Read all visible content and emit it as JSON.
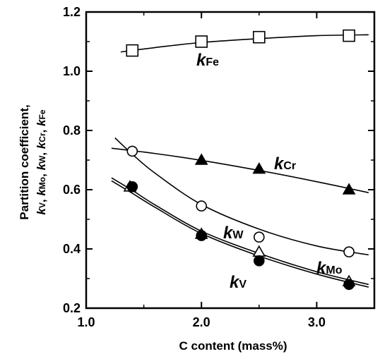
{
  "chart_data": {
    "type": "scatter",
    "xlabel": "C content  (mass%)",
    "ylabel": {
      "line1": "Partition coefficient,",
      "line2": [
        {
          "k": "k",
          "sub": "V"
        },
        {
          "k": "k",
          "sub": "Mo"
        },
        {
          "k": "k",
          "sub": "W"
        },
        {
          "k": "k",
          "sub": "Cr"
        },
        {
          "k": "k",
          "sub": "Fe"
        }
      ]
    },
    "xlim": [
      1.0,
      3.5
    ],
    "ylim": [
      0.2,
      1.2
    ],
    "x_ticks": [
      "1.0",
      "2.0",
      "3.0"
    ],
    "y_ticks": [
      "0.2",
      "0.4",
      "0.6",
      "0.8",
      "1.0",
      "1.2"
    ],
    "grid": false,
    "series": [
      {
        "name": "Fe",
        "label_k": "k",
        "label_sub": "Fe",
        "marker": "open-square",
        "points": [
          [
            1.4,
            1.07
          ],
          [
            2.0,
            1.1
          ],
          [
            2.5,
            1.115
          ],
          [
            3.28,
            1.12
          ]
        ],
        "fit": [
          [
            1.3,
            1.065
          ],
          [
            1.6,
            1.08
          ],
          [
            2.0,
            1.097
          ],
          [
            2.5,
            1.11
          ],
          [
            3.0,
            1.12
          ],
          [
            3.45,
            1.123
          ]
        ]
      },
      {
        "name": "Cr",
        "label_k": "k",
        "label_sub": "Cr",
        "marker": "filled-triangle",
        "points": [
          [
            2.0,
            0.7
          ],
          [
            2.5,
            0.67
          ],
          [
            3.28,
            0.6
          ]
        ],
        "fit": [
          [
            1.22,
            0.74
          ],
          [
            1.6,
            0.722
          ],
          [
            2.0,
            0.699
          ],
          [
            2.5,
            0.665
          ],
          [
            3.0,
            0.627
          ],
          [
            3.45,
            0.59
          ]
        ]
      },
      {
        "name": "W",
        "label_k": "k",
        "label_sub": "W",
        "marker": "open-circle",
        "points": [
          [
            1.4,
            0.73
          ],
          [
            2.0,
            0.545
          ],
          [
            2.5,
            0.44
          ],
          [
            3.28,
            0.39
          ]
        ],
        "fit": [
          [
            1.25,
            0.775
          ],
          [
            1.4,
            0.72
          ],
          [
            1.6,
            0.655
          ],
          [
            2.0,
            0.55
          ],
          [
            2.5,
            0.467
          ],
          [
            3.0,
            0.41
          ],
          [
            3.45,
            0.38
          ]
        ]
      },
      {
        "name": "Mo",
        "label_k": "k",
        "label_sub": "Mo",
        "marker": "open-triangle",
        "points": [
          [
            1.38,
            0.61
          ],
          [
            2.0,
            0.45
          ],
          [
            2.5,
            0.39
          ],
          [
            3.28,
            0.29
          ]
        ],
        "fit": [
          [
            1.22,
            0.64
          ],
          [
            1.4,
            0.598
          ],
          [
            1.6,
            0.548
          ],
          [
            2.0,
            0.46
          ],
          [
            2.5,
            0.385
          ],
          [
            3.0,
            0.323
          ],
          [
            3.45,
            0.28
          ]
        ]
      },
      {
        "name": "V",
        "label_k": "k",
        "label_sub": "V",
        "marker": "filled-circle",
        "points": [
          [
            1.4,
            0.61
          ],
          [
            2.0,
            0.445
          ],
          [
            2.5,
            0.36
          ],
          [
            3.28,
            0.28
          ]
        ],
        "fit": [
          [
            1.22,
            0.63
          ],
          [
            1.4,
            0.588
          ],
          [
            1.6,
            0.54
          ],
          [
            2.0,
            0.452
          ],
          [
            2.5,
            0.376
          ],
          [
            3.0,
            0.315
          ],
          [
            3.45,
            0.271
          ]
        ]
      }
    ]
  }
}
